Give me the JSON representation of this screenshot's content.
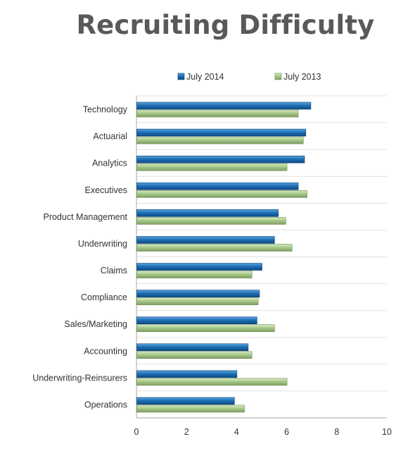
{
  "chart_data": {
    "type": "bar",
    "orientation": "horizontal",
    "title": "Recruiting Difficulty",
    "categories": [
      "Technology",
      "Actuarial",
      "Analytics",
      "Executives",
      "Product Management",
      "Underwriting",
      "Claims",
      "Compliance",
      "Sales/Marketing",
      "Accounting",
      "Underwriting-Reinsurers",
      "Operations"
    ],
    "series": [
      {
        "name": "July 2014",
        "color": "#1f6fb5",
        "values": [
          6.95,
          6.75,
          6.7,
          6.45,
          5.65,
          5.5,
          5.0,
          4.9,
          4.8,
          4.45,
          4.0,
          3.9
        ]
      },
      {
        "name": "July 2013",
        "color": "#a9c98a",
        "values": [
          6.45,
          6.65,
          6.0,
          6.8,
          5.95,
          6.2,
          4.6,
          4.85,
          5.5,
          4.6,
          6.0,
          4.3
        ]
      }
    ],
    "xlim": [
      0,
      10
    ],
    "xticks": [
      "0",
      "2",
      "4",
      "6",
      "8",
      "10"
    ],
    "grid": true,
    "legend_position": "top"
  }
}
